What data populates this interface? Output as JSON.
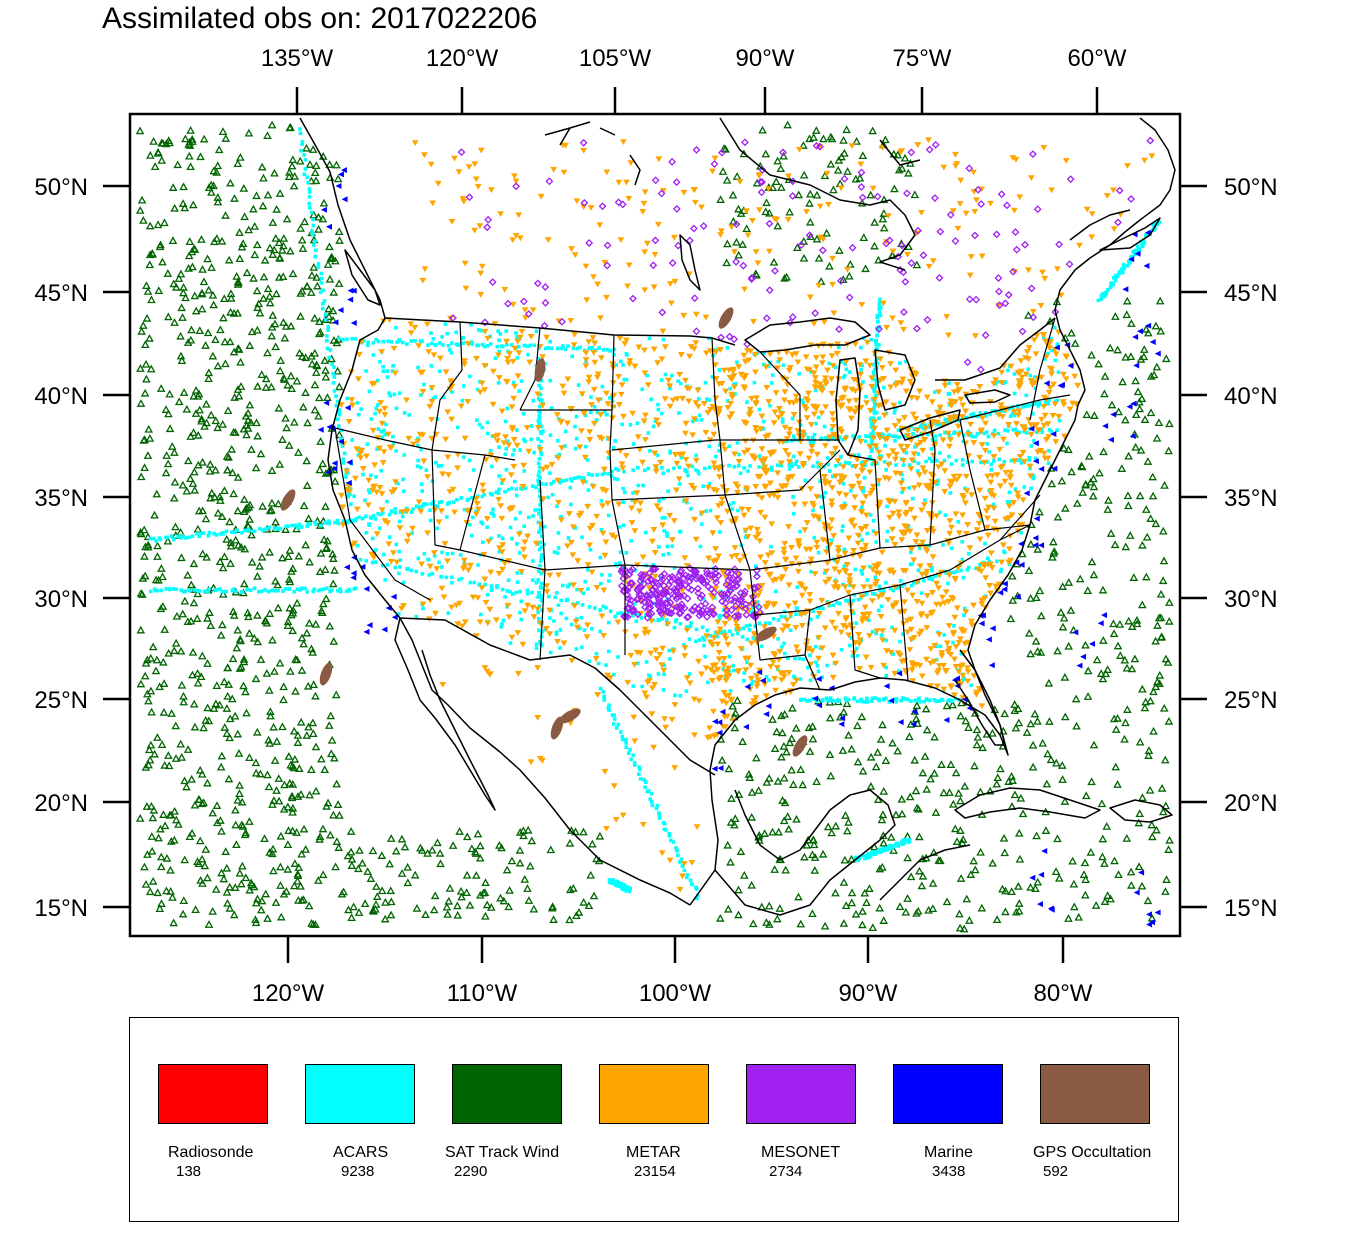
{
  "title": "Assimilated obs on: 2017022206",
  "top_axis_labels": [
    "135°W",
    "120°W",
    "105°W",
    "90°W",
    "75°W",
    "60°W"
  ],
  "bottom_axis_labels": [
    "120°W",
    "110°W",
    "100°W",
    "90°W",
    "80°W"
  ],
  "lat_labels": [
    "50°N",
    "45°N",
    "40°N",
    "35°N",
    "30°N",
    "25°N",
    "20°N",
    "15°N"
  ],
  "legend": [
    {
      "name": "Radiosonde",
      "count": "138",
      "color": "#ff0000"
    },
    {
      "name": "ACARS",
      "count": "9238",
      "color": "#00ffff"
    },
    {
      "name": "SAT Track Wind",
      "count": "2290",
      "color": "#006400"
    },
    {
      "name": "METAR",
      "count": "23154",
      "color": "#ffa500"
    },
    {
      "name": "MESONET",
      "count": "2734",
      "color": "#a020f0"
    },
    {
      "name": "Marine",
      "count": "3438",
      "color": "#0000ff"
    },
    {
      "name": "GPS Occultation",
      "count": "592",
      "color": "#8b5a42"
    }
  ]
}
